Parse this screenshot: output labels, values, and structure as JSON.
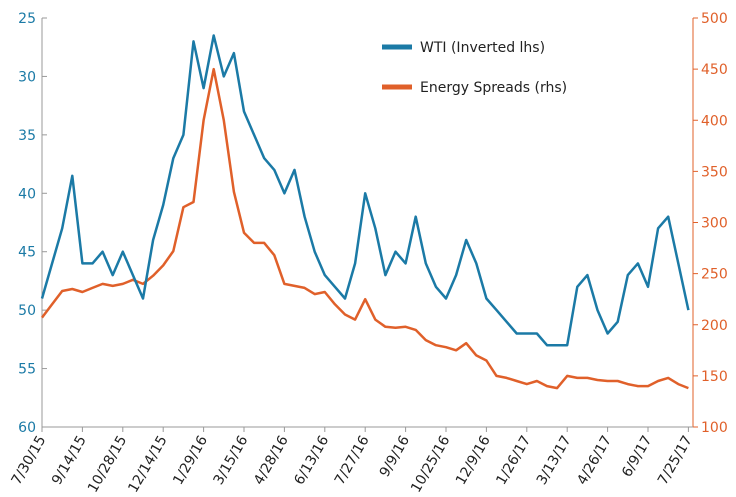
{
  "chart_data": {
    "type": "line",
    "categories": [
      "7/30/15",
      null,
      null,
      null,
      "9/14/15",
      null,
      null,
      null,
      "10/28/15",
      null,
      null,
      null,
      "12/14/15",
      null,
      null,
      null,
      "1/29/16",
      null,
      null,
      null,
      "3/15/16",
      null,
      null,
      null,
      "4/28/16",
      null,
      null,
      null,
      "6/13/16",
      null,
      null,
      null,
      "7/27/16",
      null,
      null,
      null,
      "9/9/16",
      null,
      null,
      null,
      "10/25/16",
      null,
      null,
      null,
      "12/9/16",
      null,
      null,
      null,
      "1/26/17",
      null,
      null,
      null,
      "3/13/17",
      null,
      null,
      null,
      "4/26/17",
      null,
      null,
      null,
      "6/9/17",
      null,
      null,
      null,
      "7/25/17"
    ],
    "series": [
      {
        "name": "WTI (Inverted lhs)",
        "color": "#1b7aa6",
        "values": [
          49,
          46,
          43,
          38.5,
          46,
          46,
          45,
          47,
          45,
          47,
          49,
          44,
          41,
          37,
          35,
          27,
          31,
          26.5,
          30,
          28,
          33,
          35,
          37,
          38,
          40,
          38,
          42,
          45,
          47,
          48,
          49,
          46,
          40,
          43,
          47,
          45,
          46,
          42,
          46,
          48,
          49,
          47,
          44,
          46,
          49,
          50,
          51,
          52,
          52,
          52,
          53,
          53,
          53,
          48,
          47,
          50,
          52,
          51,
          47,
          46,
          48,
          43,
          42,
          46,
          50
        ]
      },
      {
        "name": "Energy Spreads (rhs)",
        "color": "#e0602a",
        "axis": "y2",
        "values": [
          207,
          220,
          233,
          235,
          232,
          236,
          240,
          238,
          240,
          244,
          240,
          248,
          258,
          272,
          315,
          320,
          400,
          450,
          400,
          330,
          290,
          280,
          280,
          268,
          240,
          238,
          236,
          230,
          232,
          220,
          210,
          205,
          225,
          205,
          198,
          197,
          198,
          195,
          185,
          180,
          178,
          175,
          182,
          170,
          165,
          150,
          148,
          145,
          142,
          145,
          140,
          138,
          150,
          148,
          148,
          146,
          145,
          145,
          142,
          140,
          140,
          145,
          148,
          142,
          138
        ]
      }
    ],
    "ylim": [
      25,
      60
    ],
    "y_inverted": true,
    "yticks": [
      25,
      30,
      35,
      40,
      45,
      50,
      55,
      60
    ],
    "y2lim": [
      100,
      500
    ],
    "y2ticks": [
      100,
      150,
      200,
      250,
      300,
      350,
      400,
      450,
      500
    ],
    "legend": "top-right"
  }
}
